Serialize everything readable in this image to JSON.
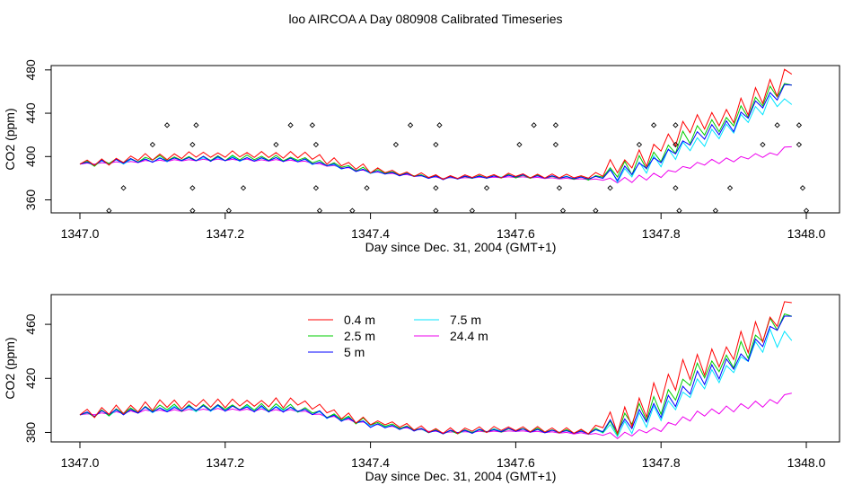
{
  "title": "loo AIRCOA A  Day 080908  Calibrated Timeseries",
  "colors": {
    "0.4 m": "#ff0000",
    "2.5 m": "#00cc00",
    "5 m": "#0000ff",
    "7.5 m": "#00e5ff",
    "24.4 m": "#ee00ee"
  },
  "chart_data": [
    {
      "type": "line",
      "title": "loo AIRCOA A  Day 080908  Calibrated Timeseries",
      "xlabel": "Day since Dec. 31, 2004 (GMT+1)",
      "ylabel": "CO2 (ppm)",
      "xlim": [
        1347.0,
        1348.0
      ],
      "ylim": [
        348,
        484
      ],
      "xticks": [
        "1347.0",
        "1347.2",
        "1347.4",
        "1347.6",
        "1347.8",
        "1348.0"
      ],
      "yticks": [
        "360",
        "400",
        "440",
        "480"
      ],
      "grid": false,
      "legend": "none",
      "series": [
        {
          "name": "0.4 m",
          "values": [
            [
              1347.0,
              393
            ],
            [
              1347.1,
              400
            ],
            [
              1347.2,
              402
            ],
            [
              1347.3,
              402
            ],
            [
              1347.4,
              388
            ],
            [
              1347.5,
              381
            ],
            [
              1347.6,
              383
            ],
            [
              1347.7,
              381
            ],
            [
              1347.75,
              392
            ],
            [
              1347.8,
              410
            ],
            [
              1347.85,
              432
            ],
            [
              1347.9,
              440
            ],
            [
              1347.95,
              460
            ],
            [
              1347.98,
              476
            ]
          ]
        },
        {
          "name": "2.5 m",
          "values": [
            [
              1347.0,
              393
            ],
            [
              1347.1,
              398
            ],
            [
              1347.2,
              399
            ],
            [
              1347.3,
              398
            ],
            [
              1347.4,
              387
            ],
            [
              1347.5,
              380
            ],
            [
              1347.6,
              382
            ],
            [
              1347.7,
              380
            ],
            [
              1347.75,
              387
            ],
            [
              1347.8,
              402
            ],
            [
              1347.85,
              423
            ],
            [
              1347.9,
              434
            ],
            [
              1347.95,
              458
            ],
            [
              1347.98,
              466
            ]
          ]
        },
        {
          "name": "5 m",
          "values": [
            [
              1347.0,
              393
            ],
            [
              1347.1,
              397
            ],
            [
              1347.2,
              398
            ],
            [
              1347.3,
              397
            ],
            [
              1347.4,
              386
            ],
            [
              1347.5,
              380
            ],
            [
              1347.6,
              382
            ],
            [
              1347.7,
              380
            ],
            [
              1347.75,
              384
            ],
            [
              1347.8,
              398
            ],
            [
              1347.85,
              418
            ],
            [
              1347.9,
              430
            ],
            [
              1347.95,
              455
            ],
            [
              1347.98,
              466
            ]
          ]
        },
        {
          "name": "7.5 m",
          "values": [
            [
              1347.0,
              393
            ],
            [
              1347.1,
              397
            ],
            [
              1347.2,
              398
            ],
            [
              1347.3,
              397
            ],
            [
              1347.4,
              386
            ],
            [
              1347.5,
              380
            ],
            [
              1347.6,
              382
            ],
            [
              1347.7,
              380
            ],
            [
              1347.75,
              384
            ],
            [
              1347.8,
              396
            ],
            [
              1347.85,
              414
            ],
            [
              1347.9,
              428
            ],
            [
              1347.95,
              450
            ],
            [
              1347.98,
              448
            ]
          ]
        },
        {
          "name": "24.4 m",
          "values": [
            [
              1347.0,
              393
            ],
            [
              1347.1,
              396
            ],
            [
              1347.2,
              397
            ],
            [
              1347.3,
              396
            ],
            [
              1347.4,
              386
            ],
            [
              1347.5,
              380
            ],
            [
              1347.6,
              381
            ],
            [
              1347.7,
              379
            ],
            [
              1347.75,
              378
            ],
            [
              1347.8,
              383
            ],
            [
              1347.85,
              393
            ],
            [
              1347.9,
              398
            ],
            [
              1347.95,
              402
            ],
            [
              1347.98,
              409
            ]
          ]
        },
        {
          "name": "",
          "type": "scatter",
          "values": [
            [
              1347.04,
              350
            ],
            [
              1347.06,
              371
            ],
            [
              1347.1,
              411
            ],
            [
              1347.12,
              429
            ],
            [
              1347.155,
              350
            ],
            [
              1347.155,
              371
            ],
            [
              1347.155,
              411
            ],
            [
              1347.16,
              429
            ],
            [
              1347.205,
              350
            ],
            [
              1347.225,
              371
            ],
            [
              1347.27,
              411
            ],
            [
              1347.29,
              429
            ],
            [
              1347.32,
              429
            ],
            [
              1347.325,
              411
            ],
            [
              1347.325,
              371
            ],
            [
              1347.33,
              350
            ],
            [
              1347.375,
              350
            ],
            [
              1347.395,
              371
            ],
            [
              1347.435,
              411
            ],
            [
              1347.455,
              429
            ],
            [
              1347.49,
              350
            ],
            [
              1347.49,
              371
            ],
            [
              1347.49,
              411
            ],
            [
              1347.495,
              429
            ],
            [
              1347.54,
              350
            ],
            [
              1347.56,
              371
            ],
            [
              1347.605,
              411
            ],
            [
              1347.625,
              429
            ],
            [
              1347.655,
              429
            ],
            [
              1347.655,
              411
            ],
            [
              1347.66,
              371
            ],
            [
              1347.665,
              350
            ],
            [
              1347.71,
              350
            ],
            [
              1347.73,
              371
            ],
            [
              1347.77,
              411
            ],
            [
              1347.79,
              429
            ],
            [
              1347.82,
              429
            ],
            [
              1347.82,
              411
            ],
            [
              1347.82,
              371
            ],
            [
              1347.825,
              350
            ],
            [
              1347.875,
              350
            ],
            [
              1347.895,
              371
            ],
            [
              1347.94,
              411
            ],
            [
              1347.96,
              429
            ],
            [
              1347.99,
              429
            ],
            [
              1347.99,
              411
            ],
            [
              1347.995,
              371
            ],
            [
              1348.0,
              350
            ]
          ]
        }
      ]
    },
    {
      "type": "line",
      "xlabel": "Day since Dec. 31, 2004 (GMT+1)",
      "ylabel": "CO2 (ppm)",
      "xlim": [
        1347.0,
        1348.0
      ],
      "ylim": [
        373,
        482
      ],
      "xticks": [
        "1347.0",
        "1347.2",
        "1347.4",
        "1347.6",
        "1347.8",
        "1348.0"
      ],
      "yticks": [
        "380",
        "420",
        "460"
      ],
      "grid": false,
      "legend": "top-center",
      "series": [
        {
          "name": "0.4 m",
          "values": [
            [
              1347.0,
              393
            ],
            [
              1347.1,
              400
            ],
            [
              1347.2,
              402
            ],
            [
              1347.3,
              402
            ],
            [
              1347.4,
              388
            ],
            [
              1347.5,
              381
            ],
            [
              1347.6,
              383
            ],
            [
              1347.7,
              381
            ],
            [
              1347.75,
              392
            ],
            [
              1347.8,
              410
            ],
            [
              1347.85,
              432
            ],
            [
              1347.9,
              440
            ],
            [
              1347.95,
              460
            ],
            [
              1347.98,
              476
            ]
          ]
        },
        {
          "name": "2.5 m",
          "values": [
            [
              1347.0,
              393
            ],
            [
              1347.1,
              398
            ],
            [
              1347.2,
              399
            ],
            [
              1347.3,
              398
            ],
            [
              1347.4,
              387
            ],
            [
              1347.5,
              380
            ],
            [
              1347.6,
              382
            ],
            [
              1347.7,
              380
            ],
            [
              1347.75,
              387
            ],
            [
              1347.8,
              402
            ],
            [
              1347.85,
              423
            ],
            [
              1347.9,
              434
            ],
            [
              1347.95,
              458
            ],
            [
              1347.98,
              466
            ]
          ]
        },
        {
          "name": "5 m",
          "values": [
            [
              1347.0,
              393
            ],
            [
              1347.1,
              397
            ],
            [
              1347.2,
              398
            ],
            [
              1347.3,
              397
            ],
            [
              1347.4,
              386
            ],
            [
              1347.5,
              380
            ],
            [
              1347.6,
              382
            ],
            [
              1347.7,
              380
            ],
            [
              1347.75,
              384
            ],
            [
              1347.8,
              398
            ],
            [
              1347.85,
              418
            ],
            [
              1347.9,
              430
            ],
            [
              1347.95,
              455
            ],
            [
              1347.98,
              466
            ]
          ]
        },
        {
          "name": "7.5 m",
          "values": [
            [
              1347.0,
              393
            ],
            [
              1347.1,
              397
            ],
            [
              1347.2,
              398
            ],
            [
              1347.3,
              397
            ],
            [
              1347.4,
              386
            ],
            [
              1347.5,
              380
            ],
            [
              1347.6,
              382
            ],
            [
              1347.7,
              380
            ],
            [
              1347.75,
              384
            ],
            [
              1347.8,
              396
            ],
            [
              1347.85,
              414
            ],
            [
              1347.9,
              428
            ],
            [
              1347.95,
              450
            ],
            [
              1347.98,
              448
            ]
          ]
        },
        {
          "name": "24.4 m",
          "values": [
            [
              1347.0,
              393
            ],
            [
              1347.1,
              396
            ],
            [
              1347.2,
              397
            ],
            [
              1347.3,
              396
            ],
            [
              1347.4,
              386
            ],
            [
              1347.5,
              380
            ],
            [
              1347.6,
              381
            ],
            [
              1347.7,
              379
            ],
            [
              1347.75,
              378
            ],
            [
              1347.8,
              383
            ],
            [
              1347.85,
              393
            ],
            [
              1347.9,
              398
            ],
            [
              1347.95,
              402
            ],
            [
              1347.98,
              409
            ]
          ]
        }
      ]
    }
  ]
}
